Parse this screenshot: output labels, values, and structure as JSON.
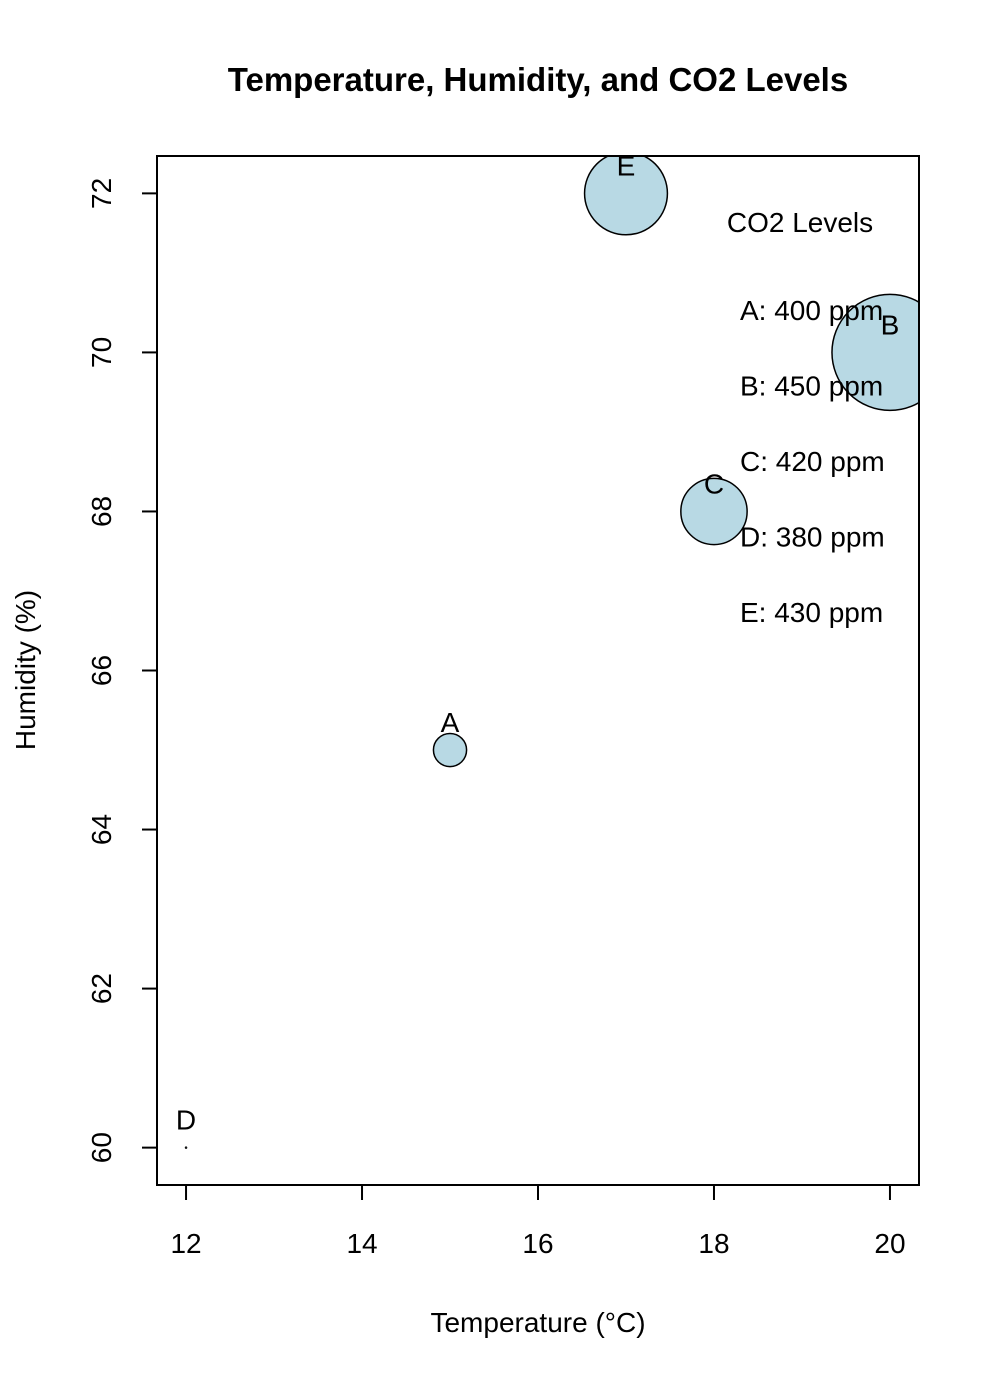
{
  "chart_data": {
    "type": "scatter",
    "title": "Temperature, Humidity, and CO2 Levels",
    "xlabel": "Temperature (°C)",
    "ylabel": "Humidity (%)",
    "xlim": [
      11.67,
      20.33
    ],
    "ylim": [
      59.53,
      72.47
    ],
    "x_ticks": [
      "12",
      "14",
      "16",
      "18",
      "20"
    ],
    "y_ticks": [
      "60",
      "62",
      "64",
      "66",
      "68",
      "70",
      "72"
    ],
    "bubble_color": "#b8d9e4",
    "points": [
      {
        "label": "A",
        "x": 15,
        "y": 65,
        "co2": 400
      },
      {
        "label": "B",
        "x": 20,
        "y": 70,
        "co2": 450
      },
      {
        "label": "C",
        "x": 18,
        "y": 68,
        "co2": 420
      },
      {
        "label": "D",
        "x": 12,
        "y": 60,
        "co2": 380
      },
      {
        "label": "E",
        "x": 17,
        "y": 72,
        "co2": 430
      }
    ],
    "legend": {
      "title": "CO2 Levels",
      "position": "top-right",
      "entries": [
        "A: 400 ppm",
        "B: 450 ppm",
        "C: 420 ppm",
        "D: 380 ppm",
        "E: 430 ppm"
      ]
    }
  }
}
